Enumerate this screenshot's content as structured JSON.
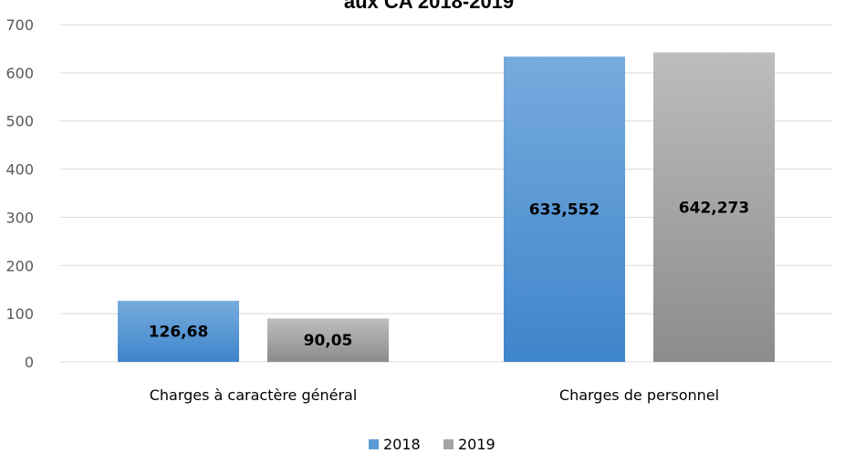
{
  "chart_data": {
    "type": "bar",
    "title": "aux CA 2018-2019",
    "categories": [
      "Charges à caractère général",
      "Charges de personnel"
    ],
    "series": [
      {
        "name": "2018",
        "values": [
          126.68,
          633.552
        ],
        "labels": [
          "126,68",
          "633,552"
        ],
        "color": "#5b9bd5"
      },
      {
        "name": "2019",
        "values": [
          90.05,
          642.273
        ],
        "labels": [
          "90,05",
          "642,273"
        ],
        "color": "#a5a5a5"
      }
    ],
    "ylim": [
      0,
      700
    ],
    "yticks": [
      0,
      100,
      200,
      300,
      400,
      500,
      600,
      700
    ],
    "grid": true,
    "legend": "bottom"
  }
}
